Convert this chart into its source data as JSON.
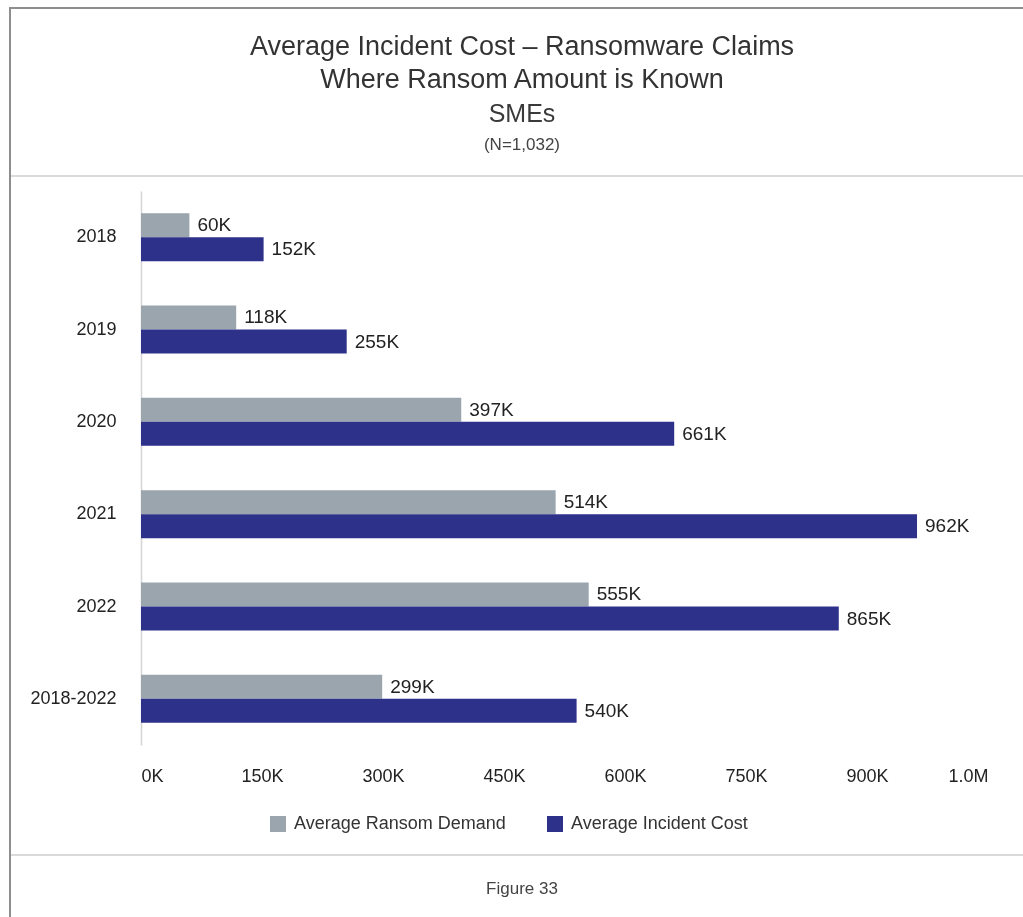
{
  "chart_data": {
    "type": "bar",
    "orientation": "horizontal",
    "title": "Average Incident Cost – Ransomware Claims\nWhere Ransom Amount is Known",
    "subtitle": "SMEs",
    "annotations": [
      "(N=1,032)",
      "Figure 33"
    ],
    "categories": [
      "2018",
      "2019",
      "2020",
      "2021",
      "2022",
      "2018-2022"
    ],
    "series": [
      {
        "name": "Average Ransom Demand",
        "color": "#9aa5ae",
        "values": [
          60000,
          118000,
          397000,
          514000,
          555000,
          299000
        ],
        "value_labels": [
          "60K",
          "118K",
          "397K",
          "514K",
          "555K",
          "299K"
        ]
      },
      {
        "name": "Average Incident Cost",
        "color": "#2e318a",
        "values": [
          152000,
          255000,
          661000,
          962000,
          865000,
          540000
        ],
        "value_labels": [
          "152K",
          "255K",
          "661K",
          "962K",
          "865K",
          "540K"
        ]
      }
    ],
    "xlim": [
      0,
      1050000
    ],
    "xticks": [
      {
        "value": 0,
        "label": "0K"
      },
      {
        "value": 150000,
        "label": "150K"
      },
      {
        "value": 300000,
        "label": "300K"
      },
      {
        "value": 450000,
        "label": "450K"
      },
      {
        "value": 600000,
        "label": "600K"
      },
      {
        "value": 750000,
        "label": "750K"
      },
      {
        "value": 900000,
        "label": "900K"
      },
      {
        "value": 1050000,
        "label": "1.0M"
      }
    ],
    "legend": "bottom"
  }
}
